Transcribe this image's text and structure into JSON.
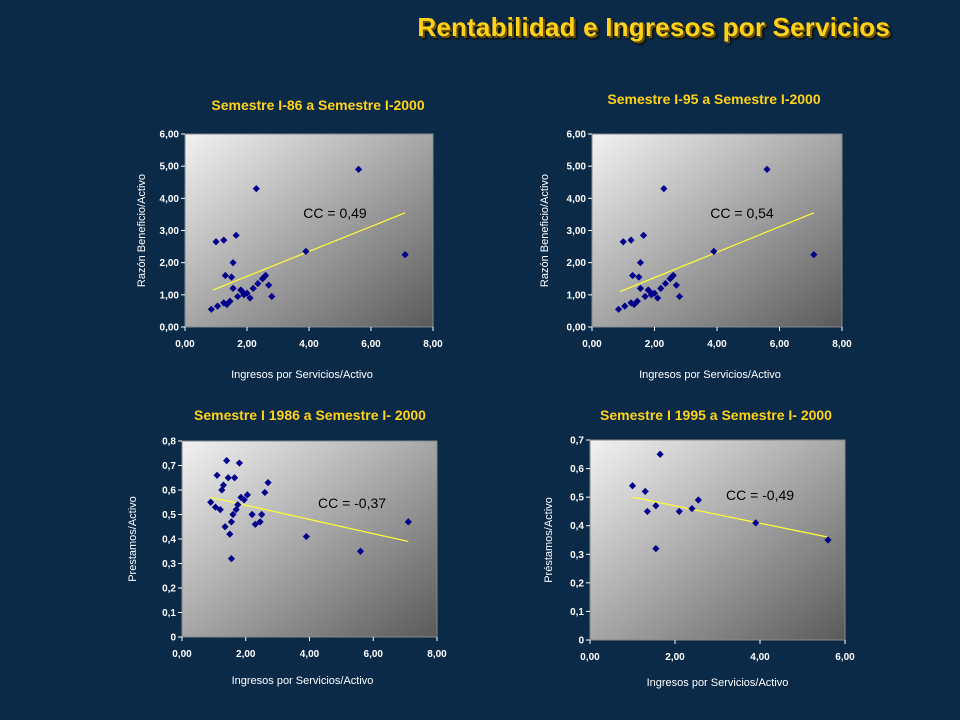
{
  "page": {
    "title": "Rentabilidad e Ingresos por Servicios"
  },
  "style": {
    "point_color": "#00008b",
    "trend_color": "#ffff33",
    "title_color": "#ffd21a"
  },
  "chart_data": [
    {
      "type": "scatter",
      "title": "Semestre I-86 a Semestre I-2000",
      "xlabel": "Ingresos por Servicios/Activo",
      "ylabel": "Razón Beneficio/Activo",
      "xlim": [
        0,
        8
      ],
      "ylim": [
        0,
        6
      ],
      "xticks": [
        "0,00",
        "2,00",
        "4,00",
        "6,00",
        "8,00"
      ],
      "yticks": [
        "0,00",
        "1,00",
        "2,00",
        "3,00",
        "4,00",
        "5,00",
        "6,00"
      ],
      "annotation": "CC = 0,49",
      "trendline": [
        [
          0.9,
          1.15
        ],
        [
          7.1,
          3.55
        ]
      ],
      "points": [
        [
          0.85,
          0.55
        ],
        [
          1.05,
          0.65
        ],
        [
          1.25,
          0.75
        ],
        [
          1.35,
          0.7
        ],
        [
          1.45,
          0.8
        ],
        [
          1.55,
          1.2
        ],
        [
          1.7,
          0.95
        ],
        [
          1.8,
          1.15
        ],
        [
          1.9,
          1.0
        ],
        [
          2.0,
          1.05
        ],
        [
          2.1,
          0.9
        ],
        [
          2.2,
          1.2
        ],
        [
          2.35,
          1.35
        ],
        [
          2.5,
          1.5
        ],
        [
          2.6,
          1.6
        ],
        [
          2.7,
          1.3
        ],
        [
          2.8,
          0.95
        ],
        [
          1.0,
          2.65
        ],
        [
          1.25,
          2.7
        ],
        [
          1.3,
          1.6
        ],
        [
          1.5,
          1.55
        ],
        [
          1.55,
          2.0
        ],
        [
          1.65,
          2.85
        ],
        [
          2.3,
          4.3
        ],
        [
          2.55,
          1.55
        ],
        [
          3.9,
          2.35
        ],
        [
          5.6,
          4.9
        ],
        [
          7.1,
          2.25
        ],
        [
          1.85,
          1.1
        ]
      ]
    },
    {
      "type": "scatter",
      "title": "Semestre I-95 a Semestre I-2000",
      "xlabel": "Ingresos por Servicios/Activo",
      "ylabel": "Razón Beneficio/Activo",
      "xlim": [
        0,
        8
      ],
      "ylim": [
        0,
        6
      ],
      "xticks": [
        "0,00",
        "2,00",
        "4,00",
        "6,00",
        "8,00"
      ],
      "yticks": [
        "0,00",
        "1,00",
        "2,00",
        "3,00",
        "4,00",
        "5,00",
        "6,00"
      ],
      "annotation": "CC = 0,54",
      "trendline": [
        [
          0.9,
          1.1
        ],
        [
          7.1,
          3.55
        ]
      ],
      "points": [
        [
          0.85,
          0.55
        ],
        [
          1.05,
          0.65
        ],
        [
          1.25,
          0.75
        ],
        [
          1.35,
          0.7
        ],
        [
          1.45,
          0.8
        ],
        [
          1.55,
          1.2
        ],
        [
          1.7,
          0.95
        ],
        [
          1.8,
          1.15
        ],
        [
          1.9,
          1.0
        ],
        [
          2.0,
          1.05
        ],
        [
          2.1,
          0.9
        ],
        [
          2.2,
          1.2
        ],
        [
          2.35,
          1.35
        ],
        [
          2.5,
          1.5
        ],
        [
          2.6,
          1.6
        ],
        [
          2.7,
          1.3
        ],
        [
          2.8,
          0.95
        ],
        [
          1.0,
          2.65
        ],
        [
          1.25,
          2.7
        ],
        [
          1.3,
          1.6
        ],
        [
          1.5,
          1.55
        ],
        [
          1.55,
          2.0
        ],
        [
          1.65,
          2.85
        ],
        [
          2.3,
          4.3
        ],
        [
          2.55,
          1.55
        ],
        [
          3.9,
          2.35
        ],
        [
          5.6,
          4.9
        ],
        [
          7.1,
          2.25
        ],
        [
          1.85,
          1.1
        ]
      ]
    },
    {
      "type": "scatter",
      "title": "Semestre I 1986 a Semestre I- 2000",
      "xlabel": "Ingresos por Servicios/Activo",
      "ylabel": "Prestamos/Activo",
      "xlim": [
        0,
        8
      ],
      "ylim": [
        0,
        0.8
      ],
      "xticks": [
        "0,00",
        "2,00",
        "4,00",
        "6,00",
        "8,00"
      ],
      "yticks": [
        "0",
        "0,1",
        "0,2",
        "0,3",
        "0,4",
        "0,5",
        "0,6",
        "0,7",
        "0,8"
      ],
      "annotation": "CC = -0,37",
      "trendline": [
        [
          0.9,
          0.57
        ],
        [
          7.1,
          0.39
        ]
      ],
      "points": [
        [
          0.9,
          0.55
        ],
        [
          1.05,
          0.53
        ],
        [
          1.1,
          0.66
        ],
        [
          1.2,
          0.52
        ],
        [
          1.25,
          0.6
        ],
        [
          1.3,
          0.62
        ],
        [
          1.35,
          0.45
        ],
        [
          1.4,
          0.72
        ],
        [
          1.45,
          0.65
        ],
        [
          1.5,
          0.42
        ],
        [
          1.55,
          0.47
        ],
        [
          1.6,
          0.5
        ],
        [
          1.65,
          0.65
        ],
        [
          1.7,
          0.52
        ],
        [
          1.75,
          0.54
        ],
        [
          1.8,
          0.71
        ],
        [
          1.85,
          0.57
        ],
        [
          1.95,
          0.56
        ],
        [
          2.05,
          0.58
        ],
        [
          2.2,
          0.5
        ],
        [
          2.3,
          0.46
        ],
        [
          2.45,
          0.47
        ],
        [
          2.5,
          0.5
        ],
        [
          2.6,
          0.59
        ],
        [
          2.7,
          0.63
        ],
        [
          1.55,
          0.32
        ],
        [
          3.9,
          0.41
        ],
        [
          5.6,
          0.35
        ],
        [
          7.1,
          0.47
        ]
      ]
    },
    {
      "type": "scatter",
      "title": "Semestre I 1995 a Semestre I- 2000",
      "xlabel": "Ingresos por Servicios/Activo",
      "ylabel": "Préstamos/Activo",
      "xlim": [
        0,
        6
      ],
      "ylim": [
        0,
        0.7
      ],
      "xticks": [
        "0,00",
        "2,00",
        "4,00",
        "6,00"
      ],
      "yticks": [
        "0",
        "0,1",
        "0,2",
        "0,3",
        "0,4",
        "0,5",
        "0,6",
        "0,7"
      ],
      "annotation": "CC = -0,49",
      "trendline": [
        [
          1.0,
          0.5
        ],
        [
          5.6,
          0.36
        ]
      ],
      "points": [
        [
          1.0,
          0.54
        ],
        [
          1.3,
          0.52
        ],
        [
          1.35,
          0.45
        ],
        [
          1.55,
          0.47
        ],
        [
          1.65,
          0.65
        ],
        [
          2.1,
          0.45
        ],
        [
          2.4,
          0.46
        ],
        [
          2.55,
          0.49
        ],
        [
          1.55,
          0.32
        ],
        [
          3.9,
          0.41
        ],
        [
          5.6,
          0.35
        ]
      ]
    }
  ]
}
